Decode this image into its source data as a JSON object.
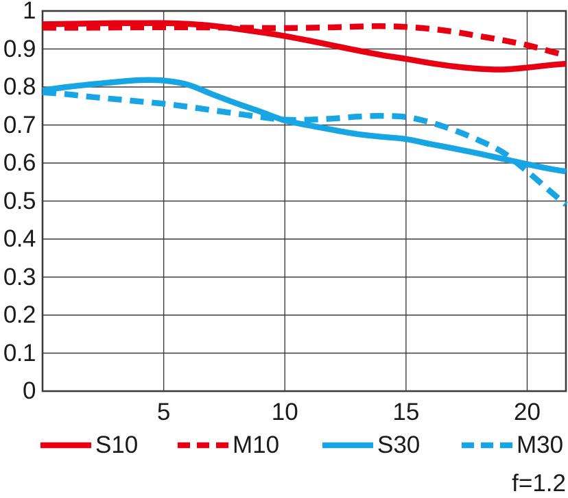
{
  "figure": {
    "caption": "f=1.2"
  },
  "colors": {
    "red": "#e60012",
    "blue": "#17a5e3",
    "grid": "#3c3c3c",
    "text": "#1a1a1a"
  },
  "legend": [
    {
      "label": "S10",
      "color": "#e60012",
      "style": "solid"
    },
    {
      "label": "M10",
      "color": "#e60012",
      "style": "dashed"
    },
    {
      "label": "S30",
      "color": "#17a5e3",
      "style": "solid"
    },
    {
      "label": "M30",
      "color": "#17a5e3",
      "style": "dashed"
    }
  ],
  "chart_data": {
    "type": "line",
    "title": "",
    "xlabel": "",
    "ylabel": "",
    "annotation": "f=1.2",
    "grid": true,
    "legend_position": "bottom",
    "xlim": [
      0,
      21.6
    ],
    "ylim": [
      0,
      1
    ],
    "x_ticks": [
      5,
      10,
      15,
      20
    ],
    "x_tick_labels": [
      "5",
      "10",
      "15",
      "20"
    ],
    "y_ticks": [
      0,
      0.1,
      0.2,
      0.3,
      0.4,
      0.5,
      0.6,
      0.7,
      0.8,
      0.9,
      1
    ],
    "y_tick_labels": [
      "0",
      "0.1",
      "0.2",
      "0.3",
      "0.4",
      "0.5",
      "0.6",
      "0.7",
      "0.8",
      "0.9",
      "1"
    ],
    "series": [
      {
        "name": "M10",
        "color": "#e60012",
        "dash": true,
        "points": [
          [
            0,
            0.956
          ],
          [
            2,
            0.956
          ],
          [
            4,
            0.957
          ],
          [
            6,
            0.957
          ],
          [
            8,
            0.956
          ],
          [
            10,
            0.955
          ],
          [
            12,
            0.957
          ],
          [
            13,
            0.959
          ],
          [
            14,
            0.96
          ],
          [
            15,
            0.958
          ],
          [
            16,
            0.953
          ],
          [
            17,
            0.945
          ],
          [
            18,
            0.934
          ],
          [
            19,
            0.923
          ],
          [
            20,
            0.91
          ],
          [
            21,
            0.893
          ],
          [
            21.6,
            0.883
          ]
        ]
      },
      {
        "name": "S10",
        "color": "#e60012",
        "dash": false,
        "points": [
          [
            0,
            0.965
          ],
          [
            1,
            0.966
          ],
          [
            2,
            0.967
          ],
          [
            3,
            0.968
          ],
          [
            4,
            0.968
          ],
          [
            5,
            0.968
          ],
          [
            6,
            0.966
          ],
          [
            7,
            0.961
          ],
          [
            8,
            0.953
          ],
          [
            9,
            0.944
          ],
          [
            10,
            0.934
          ],
          [
            11,
            0.922
          ],
          [
            12,
            0.909
          ],
          [
            13,
            0.896
          ],
          [
            14,
            0.884
          ],
          [
            15,
            0.874
          ],
          [
            16,
            0.863
          ],
          [
            17,
            0.854
          ],
          [
            18,
            0.848
          ],
          [
            19,
            0.846
          ],
          [
            20,
            0.851
          ],
          [
            21,
            0.858
          ],
          [
            21.6,
            0.861
          ]
        ]
      },
      {
        "name": "M30",
        "color": "#17a5e3",
        "dash": true,
        "points": [
          [
            0,
            0.786
          ],
          [
            1,
            0.781
          ],
          [
            2,
            0.774
          ],
          [
            3,
            0.768
          ],
          [
            4,
            0.762
          ],
          [
            5,
            0.756
          ],
          [
            6,
            0.748
          ],
          [
            7,
            0.739
          ],
          [
            8,
            0.73
          ],
          [
            9,
            0.721
          ],
          [
            10,
            0.714
          ],
          [
            11,
            0.714
          ],
          [
            12,
            0.717
          ],
          [
            13,
            0.722
          ],
          [
            14,
            0.724
          ],
          [
            15,
            0.721
          ],
          [
            16,
            0.707
          ],
          [
            17,
            0.686
          ],
          [
            18,
            0.66
          ],
          [
            19,
            0.628
          ],
          [
            20,
            0.578
          ],
          [
            21,
            0.523
          ],
          [
            21.6,
            0.491
          ]
        ]
      },
      {
        "name": "S30",
        "color": "#17a5e3",
        "dash": false,
        "points": [
          [
            0,
            0.791
          ],
          [
            1,
            0.8
          ],
          [
            2,
            0.807
          ],
          [
            3,
            0.813
          ],
          [
            4,
            0.818
          ],
          [
            5,
            0.817
          ],
          [
            6,
            0.806
          ],
          [
            7,
            0.781
          ],
          [
            8,
            0.757
          ],
          [
            9,
            0.735
          ],
          [
            10,
            0.712
          ],
          [
            11,
            0.699
          ],
          [
            12,
            0.687
          ],
          [
            13,
            0.676
          ],
          [
            14,
            0.669
          ],
          [
            15,
            0.663
          ],
          [
            16,
            0.65
          ],
          [
            17,
            0.638
          ],
          [
            18,
            0.625
          ],
          [
            19,
            0.611
          ],
          [
            20,
            0.597
          ],
          [
            21,
            0.584
          ],
          [
            21.6,
            0.578
          ]
        ]
      }
    ]
  }
}
